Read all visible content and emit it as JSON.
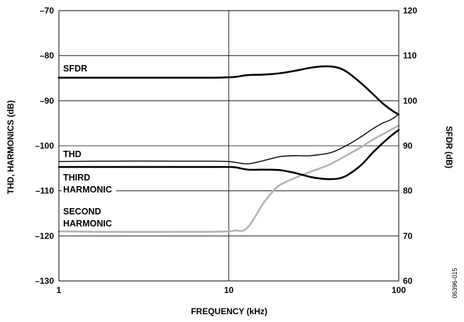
{
  "chart_data": {
    "type": "line",
    "figure_id": "06396-015",
    "xlabel": "FREQUENCY (kHz)",
    "ylabel": "THD, HARMONICS (dB)",
    "y2label": "SFDR (dB)",
    "xscale": "log",
    "xlim": [
      1,
      100
    ],
    "ylim": [
      -130,
      -70
    ],
    "y2lim": [
      60,
      120
    ],
    "x_ticks": [
      1,
      10,
      100
    ],
    "x_tick_labels": [
      "1",
      "10",
      "100"
    ],
    "y_ticks": [
      -70,
      -80,
      -90,
      -100,
      -110,
      -120,
      -130
    ],
    "y_tick_labels": [
      "–70",
      "–80",
      "–90",
      "–100",
      "–110",
      "–120",
      "–130"
    ],
    "y2_ticks": [
      120,
      110,
      100,
      90,
      80,
      70,
      60
    ],
    "y2_tick_labels": [
      "120",
      "110",
      "100",
      "90",
      "80",
      "70",
      "60"
    ],
    "grid": true,
    "series": [
      {
        "name": "SFDR",
        "axis": "right",
        "color": "#000000",
        "x": [
          1,
          2,
          5,
          8,
          10,
          11,
          13,
          16,
          20,
          25,
          30,
          35,
          40,
          45,
          50,
          60,
          70,
          80,
          90,
          100
        ],
        "values": [
          105.1,
          105.1,
          105.1,
          105.1,
          105.2,
          105.3,
          105.7,
          105.8,
          106.1,
          106.7,
          107.3,
          107.6,
          107.6,
          107.2,
          106.3,
          103.9,
          101.6,
          99.5,
          98.0,
          96.9
        ]
      },
      {
        "name": "THD",
        "axis": "left",
        "color": "#000000",
        "x": [
          1,
          2,
          5,
          8,
          10,
          11,
          13,
          16,
          20,
          25,
          30,
          40,
          50,
          60,
          70,
          80,
          90,
          100
        ],
        "values": [
          -103.5,
          -103.4,
          -103.4,
          -103.4,
          -103.5,
          -103.7,
          -104.0,
          -103.3,
          -102.4,
          -102.2,
          -102.2,
          -101.5,
          -99.8,
          -98.0,
          -96.3,
          -95.0,
          -94.2,
          -93.0
        ]
      },
      {
        "name": "THIRD HARMONIC",
        "axis": "left",
        "color": "#000000",
        "x": [
          1,
          2,
          5,
          8,
          10,
          11,
          13,
          16,
          20,
          25,
          30,
          35,
          40,
          45,
          50,
          60,
          70,
          80,
          90,
          100
        ],
        "values": [
          -104.7,
          -104.7,
          -104.7,
          -104.7,
          -104.7,
          -104.8,
          -105.3,
          -105.3,
          -105.4,
          -106.1,
          -106.9,
          -107.3,
          -107.4,
          -107.2,
          -106.5,
          -104.3,
          -101.6,
          -99.5,
          -97.8,
          -96.5
        ]
      },
      {
        "name": "SECOND HARMONIC",
        "axis": "left",
        "color": "#b3b3b3",
        "x": [
          1,
          2,
          5,
          8,
          10,
          11,
          12,
          13,
          14,
          15,
          16,
          18,
          20,
          25,
          30,
          35,
          40,
          50,
          60,
          70,
          80,
          100
        ],
        "values": [
          -119.0,
          -119.1,
          -119.1,
          -119.1,
          -119.0,
          -118.8,
          -118.9,
          -118.0,
          -116.3,
          -114.4,
          -112.7,
          -110.3,
          -108.7,
          -107.0,
          -105.8,
          -104.9,
          -104.0,
          -102.0,
          -100.3,
          -98.7,
          -97.5,
          -95.5
        ]
      }
    ],
    "labels": {
      "sfdr": "SFDR",
      "thd": "THD",
      "third_1": "THIRD",
      "third_2": "HARMONIC",
      "second_1": "SECOND",
      "second_2": "HARMONIC"
    }
  }
}
